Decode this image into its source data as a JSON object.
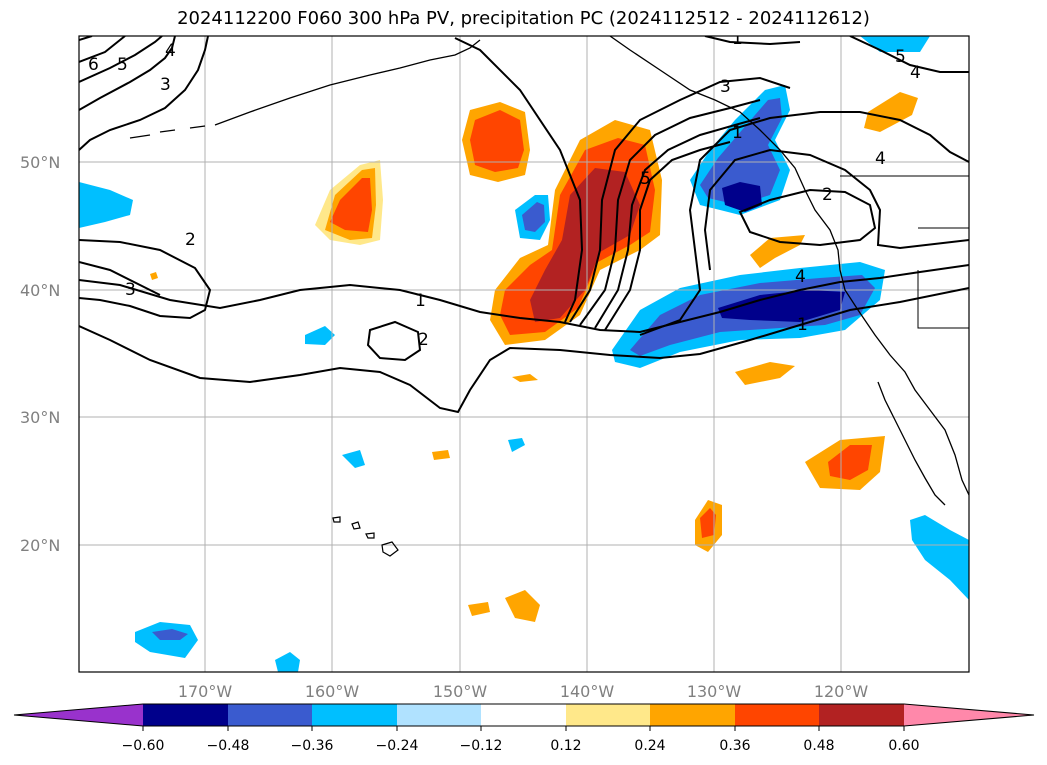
{
  "title": "2024112200 F060 300 hPa PV, precipitation PC (2024112512 - 2024112612)",
  "lat_ticks": [
    "50°N",
    "40°N",
    "30°N",
    "20°N"
  ],
  "lon_ticks": [
    "170°W",
    "160°W",
    "150°W",
    "140°W",
    "130°W",
    "120°W"
  ],
  "colorbar": {
    "tick_labels": [
      "−0.60",
      "−0.48",
      "−0.36",
      "−0.24",
      "−0.12",
      "0.12",
      "0.24",
      "0.36",
      "0.48",
      "0.60"
    ],
    "colors": [
      "#9932cc",
      "#00008b",
      "#3a5bcf",
      "#00bfff",
      "#b0e2ff",
      "#ffffff",
      "#ffe88a",
      "#ffa500",
      "#ff4500",
      "#b22222",
      "#ff88aa"
    ]
  },
  "contour_labels": [
    "6",
    "5",
    "4",
    "3",
    "2",
    "3",
    "1",
    "2",
    "5",
    "3",
    "1",
    "4",
    "2",
    "1",
    "5",
    "4",
    "4",
    "1"
  ],
  "colors": {
    "gridline": "#b0b0b0",
    "contour": "#000000",
    "coast": "#000000"
  }
}
